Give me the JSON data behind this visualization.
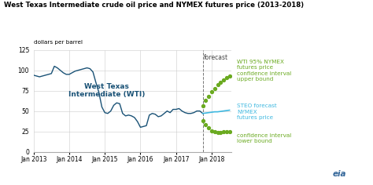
{
  "title": "West Texas Intermediate crude oil price and NYMEX futures price (2013-2018)",
  "ylabel": "dollars per barrel",
  "ylim": [
    0,
    125
  ],
  "yticks": [
    0,
    25,
    50,
    75,
    100,
    125
  ],
  "forecast_x": 2017.75,
  "forecast_label": "forecast",
  "wti_color": "#1a5276",
  "steo_color": "#3eb8e0",
  "ci_color": "#6aaa20",
  "annotation_wti": "West Texas\nIntermediate (WTI)",
  "label_upper": "WTI 95% NYMEX\nfutures price\nconfidence interval\nupper bound",
  "label_steo": "STEO forecast\nNYMEX\nfutures price",
  "label_lower": "confidence interval\nlower bound",
  "wti_x": [
    2013.0,
    2013.083,
    2013.167,
    2013.25,
    2013.333,
    2013.417,
    2013.5,
    2013.583,
    2013.667,
    2013.75,
    2013.833,
    2013.917,
    2014.0,
    2014.083,
    2014.167,
    2014.25,
    2014.333,
    2014.417,
    2014.5,
    2014.583,
    2014.667,
    2014.75,
    2014.833,
    2014.917,
    2015.0,
    2015.083,
    2015.167,
    2015.25,
    2015.333,
    2015.417,
    2015.5,
    2015.583,
    2015.667,
    2015.75,
    2015.833,
    2015.917,
    2016.0,
    2016.083,
    2016.167,
    2016.25,
    2016.333,
    2016.417,
    2016.5,
    2016.583,
    2016.667,
    2016.75,
    2016.833,
    2016.917,
    2017.0,
    2017.083,
    2017.167,
    2017.25,
    2017.333,
    2017.417,
    2017.5,
    2017.583,
    2017.667,
    2017.75
  ],
  "wti_y": [
    94,
    93,
    92,
    93,
    94,
    95,
    96,
    105,
    103,
    100,
    97,
    95,
    95,
    97,
    99,
    100,
    101,
    102,
    103,
    102,
    98,
    85,
    73,
    55,
    48,
    47,
    50,
    57,
    60,
    59,
    47,
    44,
    45,
    44,
    42,
    37,
    30,
    31,
    32,
    45,
    47,
    46,
    43,
    44,
    47,
    50,
    48,
    52,
    52,
    53,
    50,
    48,
    47,
    47,
    48,
    50,
    50,
    47
  ],
  "forecast_months": [
    2017.75,
    2017.833,
    2017.917,
    2018.0,
    2018.083,
    2018.167,
    2018.25,
    2018.333,
    2018.417,
    2018.5
  ],
  "steo_y": [
    47,
    47.5,
    48,
    48.5,
    49,
    49,
    49.5,
    50,
    50.5,
    51
  ],
  "upper_y": [
    56,
    63,
    68,
    74,
    78,
    82,
    85,
    88,
    91,
    93
  ],
  "lower_y": [
    38,
    33,
    29,
    26,
    25,
    24,
    24,
    25,
    25,
    25
  ],
  "background_color": "#ffffff",
  "grid_color": "#cccccc",
  "xtick_positions": [
    2013,
    2014,
    2015,
    2016,
    2017,
    2018
  ],
  "xtick_labels": [
    "Jan 2013",
    "Jan 2014",
    "Jan 2015",
    "Jan 2016",
    "Jan 2017",
    "Jan 2018"
  ]
}
